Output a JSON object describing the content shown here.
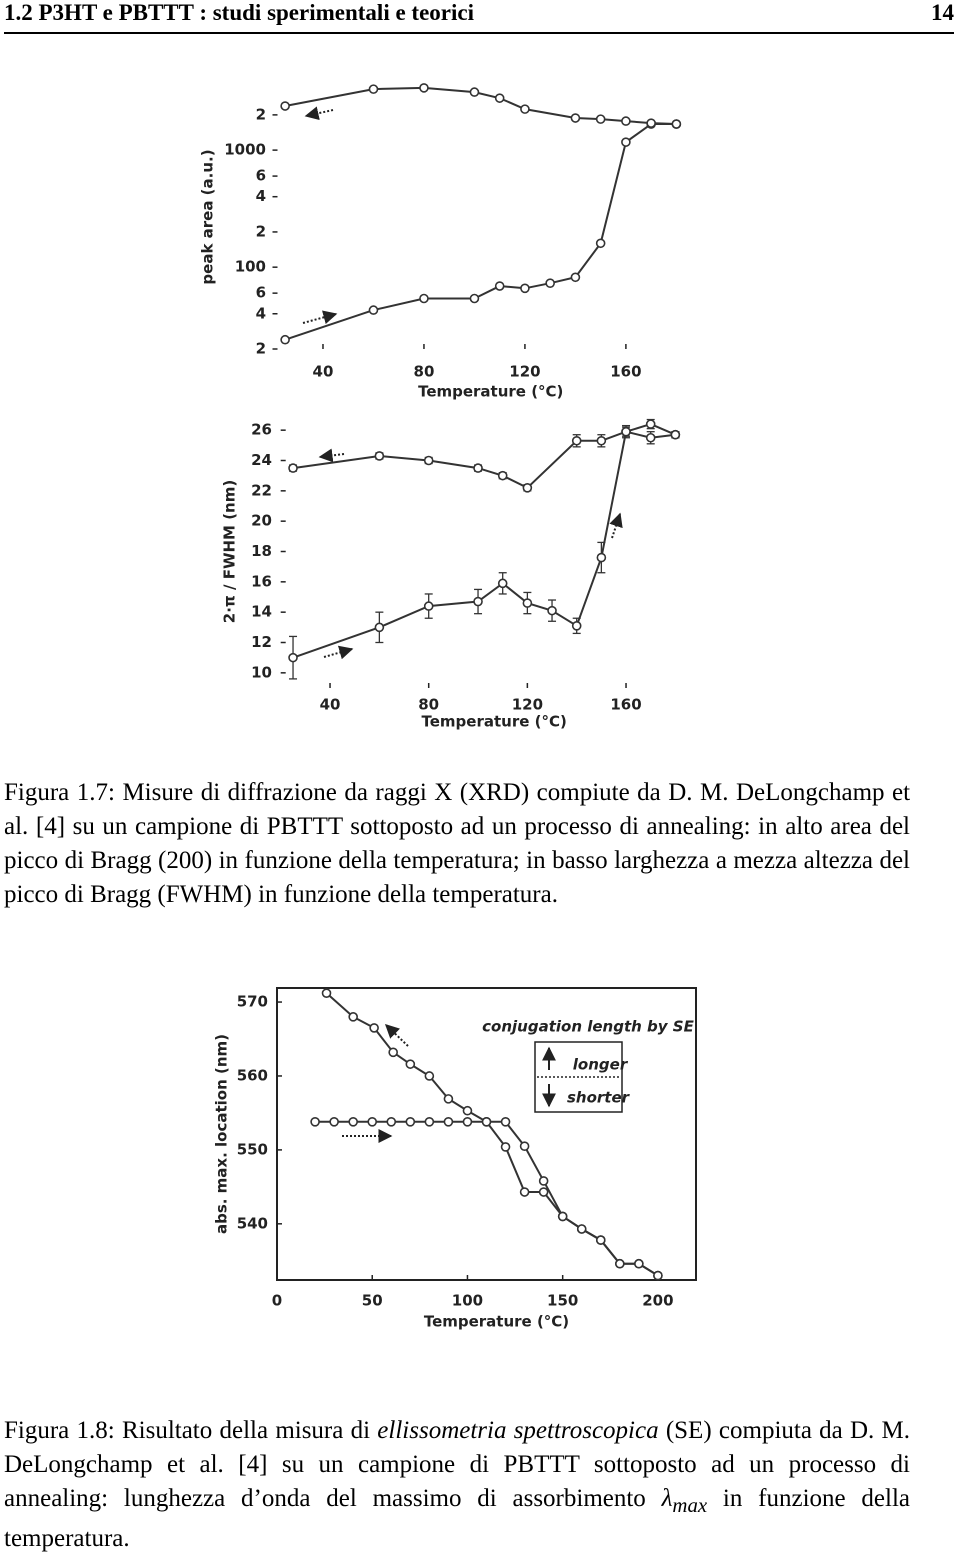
{
  "header": {
    "title": "1.2 P3HT e PBTTT : studi sperimentali e teorici",
    "page": 14
  },
  "chart_data": [
    {
      "type": "line",
      "x_label": "Temperature (°C)",
      "y_label": "peak area (a.u.)",
      "log_y": true,
      "xlim": [
        20,
        185
      ],
      "ylim": [
        20,
        3600
      ],
      "xticks": [
        40,
        80,
        120,
        160
      ],
      "yticks": [
        {
          "value": 20,
          "label": "2"
        },
        {
          "value": 40,
          "label": "4"
        },
        {
          "value": 60,
          "label": "6"
        },
        100,
        {
          "value": 200,
          "label": "2"
        },
        {
          "value": 400,
          "label": "4"
        },
        {
          "value": 600,
          "label": "6"
        },
        1000,
        {
          "value": 2000,
          "label": "2"
        }
      ],
      "series": [
        {
          "color": "#333333",
          "x": [
            25,
            60,
            80,
            100,
            110,
            120,
            130,
            140,
            150,
            160,
            170,
            180
          ],
          "values": [
            24,
            43,
            54,
            54,
            69,
            66,
            73,
            82,
            160,
            1170,
            1670,
            1670
          ]
        },
        {
          "color": "#333333",
          "x": [
            25,
            60,
            80,
            100,
            110,
            120,
            140,
            150,
            160,
            170,
            180
          ],
          "values": [
            2380,
            3320,
            3400,
            3130,
            2780,
            2240,
            1880,
            1840,
            1770,
            1700,
            1670
          ]
        }
      ]
    },
    {
      "type": "line",
      "x_label": "Temperature (°C)",
      "y_label": "2·π / FWHM (nm)",
      "xlim": [
        20,
        185
      ],
      "ylim": [
        9,
        27
      ],
      "xticks": [
        40,
        80,
        120,
        160
      ],
      "yticks": [
        10,
        12,
        14,
        16,
        18,
        20,
        22,
        24,
        26
      ],
      "series": [
        {
          "color": "#333333",
          "x": [
            25,
            60,
            80,
            100,
            110,
            120,
            130,
            140,
            150,
            160,
            170,
            180
          ],
          "values": [
            11.0,
            13.0,
            14.4,
            14.7,
            15.9,
            14.6,
            14.1,
            13.1,
            17.6,
            25.9,
            26.4,
            25.7
          ],
          "errors": [
            1.4,
            1.0,
            0.8,
            0.8,
            0.7,
            0.7,
            0.7,
            0.5,
            1.0,
            0.3,
            0.3,
            0.2
          ]
        },
        {
          "color": "#333333",
          "x": [
            25,
            60,
            80,
            100,
            110,
            120,
            140,
            150,
            160,
            170,
            180
          ],
          "values": [
            23.5,
            24.3,
            24.0,
            23.5,
            23.0,
            22.2,
            25.3,
            25.3,
            25.9,
            25.5,
            25.7
          ],
          "errors": [
            0.2,
            0.2,
            0.2,
            0.2,
            0.2,
            0.2,
            0.4,
            0.4,
            0.4,
            0.4,
            0.2
          ]
        }
      ]
    },
    {
      "type": "line",
      "x_label": "Temperature (°C)",
      "y_label": "abs. max. location (nm)",
      "frame": true,
      "xlim": [
        0,
        220
      ],
      "ylim": [
        532.4,
        571.9
      ],
      "xticks": [
        0,
        50,
        100,
        150,
        200
      ],
      "yticks": [
        540,
        550,
        560,
        570
      ],
      "annotations": [
        "conjugation length by SE",
        "longer",
        "shorter"
      ],
      "series": [
        {
          "color": "#333333",
          "x": [
            20,
            30,
            40,
            50,
            60,
            70,
            80,
            90,
            100,
            110,
            120,
            130,
            140,
            150,
            160,
            170,
            180,
            190,
            200
          ],
          "values": [
            553.8,
            553.8,
            553.8,
            553.8,
            553.8,
            553.8,
            553.8,
            553.8,
            553.8,
            553.8,
            553.8,
            550.5,
            545.8,
            541.0,
            539.3,
            537.8,
            534.6,
            534.6,
            533.0
          ]
        },
        {
          "color": "#333333",
          "x": [
            26,
            40,
            51,
            61,
            70,
            80,
            90,
            100,
            110,
            120,
            130,
            140,
            150,
            160,
            170,
            180,
            190,
            200
          ],
          "values": [
            571.2,
            568.0,
            566.5,
            563.2,
            561.6,
            560.0,
            556.9,
            555.3,
            553.8,
            550.4,
            544.3,
            544.3,
            541.0,
            539.3,
            537.8,
            534.6,
            534.6,
            533.0
          ]
        }
      ]
    }
  ],
  "captions": [
    {
      "label": "Figura 1.7:",
      "parts": [
        "Misure di diffrazione da raggi X (XRD) compiute da D. M. DeLongchamp et al. [4] su un campione di PBTTT sottoposto ad un processo di annealing: in alto area del picco di Bragg (200) in funzione della temperatura; in basso larghezza a mezza altezza del picco di Bragg (FWHM) in funzione della temperatura."
      ]
    },
    {
      "label": "Figura 1.8:",
      "parts": [
        "Risultato della misura di ",
        "ellissometria spettroscopica",
        " (SE) compiuta da D. M. DeLongchamp et al. [4] su un campione di PBTTT sottoposto ad un processo di annealing: lunghezza d’onda del massimo di assorbimento ",
        "λ",
        "max",
        " in funzione della temperatura."
      ]
    }
  ]
}
